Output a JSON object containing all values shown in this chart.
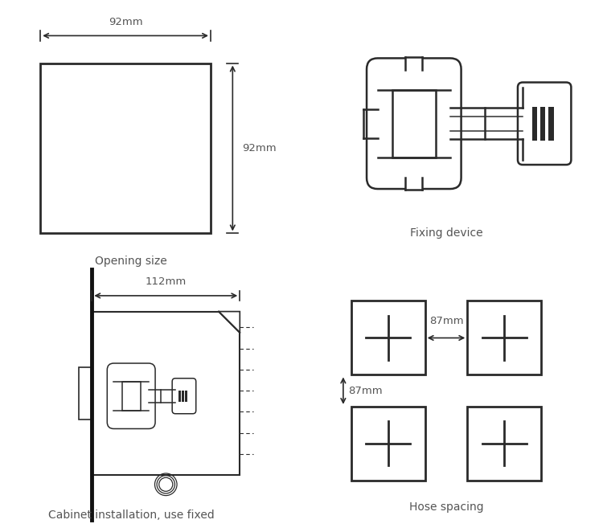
{
  "bg_color": "#ffffff",
  "line_color": "#2a2a2a",
  "text_color": "#555555",
  "label_opening": "Opening size",
  "label_fixing": "Fixing device",
  "label_cabinet": "Cabinet installation, use fixed",
  "label_hose": "Hose spacing",
  "dim_92h": "92mm",
  "dim_92v": "92mm",
  "dim_112": "112mm",
  "dim_87h": "87mm",
  "dim_87v": "87mm"
}
